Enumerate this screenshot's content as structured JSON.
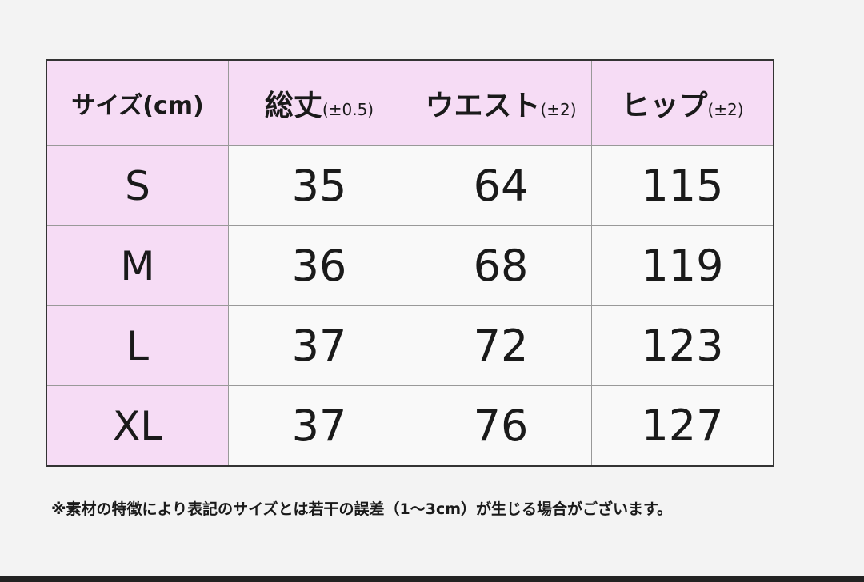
{
  "table": {
    "header": [
      {
        "label": "サイズ(cm)"
      },
      {
        "label": "総丈",
        "note": "(±0.5)"
      },
      {
        "label": "ウエスト",
        "note": "(±2)"
      },
      {
        "label": "ヒップ",
        "note": "(±2)"
      }
    ],
    "rows": [
      [
        "S",
        35,
        64,
        115
      ],
      [
        "M",
        36,
        68,
        119
      ],
      [
        "L",
        37,
        72,
        123
      ],
      [
        "XL",
        37,
        76,
        127
      ]
    ]
  },
  "footnote": "※素材の特徴により表記のサイズとは若干の誤差（1～3cm）が生じる場合がございます。"
}
